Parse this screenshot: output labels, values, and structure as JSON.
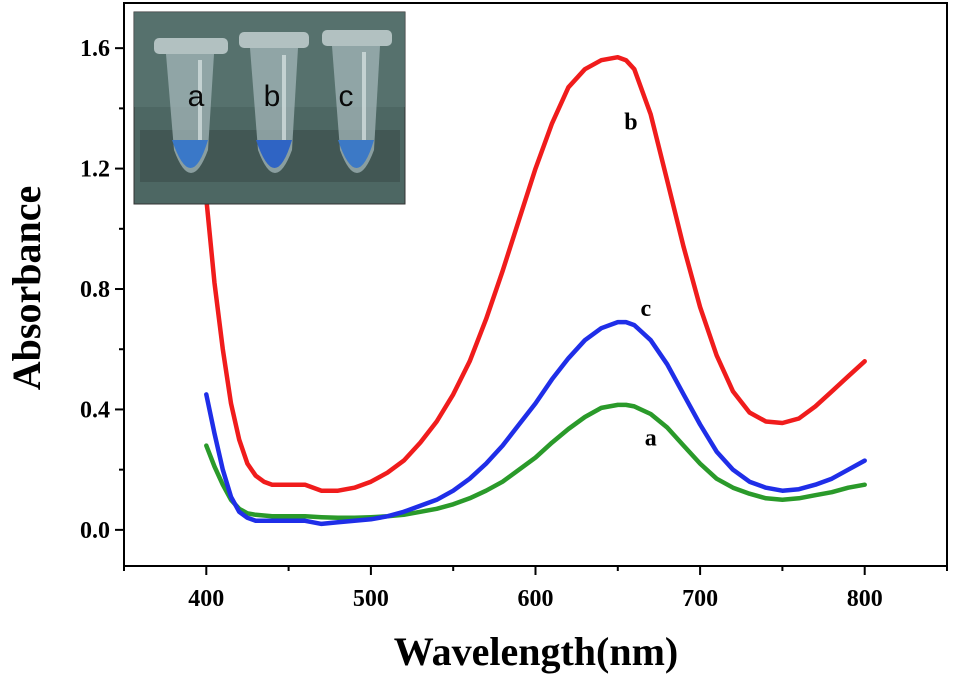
{
  "chart_data": {
    "type": "line",
    "title": "",
    "xlabel": "Wavelength(nm)",
    "ylabel": "Absorbance",
    "xlim": [
      350,
      850
    ],
    "ylim": [
      -0.12,
      1.75
    ],
    "xticks": [
      400,
      500,
      600,
      700,
      800
    ],
    "xtick_labels": [
      "400",
      "500",
      "600",
      "700",
      "800"
    ],
    "yticks": [
      0.0,
      0.4,
      0.8,
      1.2,
      1.6
    ],
    "ytick_labels": [
      "0.0",
      "0.4",
      "0.8",
      "1.2",
      "1.6"
    ],
    "grid": false,
    "series": [
      {
        "name": "a",
        "color": "#2a9a2a",
        "x": [
          400,
          405,
          410,
          415,
          420,
          425,
          430,
          440,
          450,
          460,
          470,
          480,
          490,
          500,
          510,
          520,
          530,
          540,
          550,
          560,
          570,
          580,
          590,
          600,
          610,
          620,
          630,
          640,
          650,
          655,
          660,
          670,
          680,
          690,
          700,
          710,
          720,
          730,
          740,
          750,
          760,
          770,
          780,
          790,
          800
        ],
        "y": [
          0.28,
          0.21,
          0.15,
          0.1,
          0.07,
          0.055,
          0.05,
          0.045,
          0.045,
          0.045,
          0.042,
          0.04,
          0.04,
          0.042,
          0.045,
          0.05,
          0.06,
          0.07,
          0.085,
          0.105,
          0.13,
          0.16,
          0.2,
          0.24,
          0.29,
          0.335,
          0.375,
          0.405,
          0.415,
          0.415,
          0.41,
          0.385,
          0.34,
          0.28,
          0.22,
          0.17,
          0.14,
          0.12,
          0.105,
          0.1,
          0.105,
          0.115,
          0.125,
          0.14,
          0.15
        ]
      },
      {
        "name": "b",
        "color": "#f01c1c",
        "x": [
          400,
          405,
          410,
          415,
          420,
          425,
          430,
          435,
          440,
          450,
          460,
          465,
          470,
          480,
          490,
          500,
          510,
          520,
          530,
          540,
          550,
          560,
          570,
          580,
          590,
          600,
          610,
          620,
          630,
          640,
          650,
          655,
          660,
          670,
          680,
          690,
          700,
          710,
          720,
          730,
          740,
          750,
          760,
          770,
          780,
          790,
          800
        ],
        "y": [
          1.1,
          0.82,
          0.6,
          0.42,
          0.3,
          0.22,
          0.18,
          0.16,
          0.15,
          0.15,
          0.15,
          0.14,
          0.13,
          0.13,
          0.14,
          0.16,
          0.19,
          0.23,
          0.29,
          0.36,
          0.45,
          0.56,
          0.7,
          0.86,
          1.03,
          1.2,
          1.35,
          1.47,
          1.53,
          1.56,
          1.57,
          1.56,
          1.53,
          1.38,
          1.16,
          0.94,
          0.74,
          0.58,
          0.46,
          0.39,
          0.36,
          0.355,
          0.37,
          0.41,
          0.46,
          0.51,
          0.56
        ]
      },
      {
        "name": "c",
        "color": "#1f2ee8",
        "x": [
          400,
          405,
          410,
          415,
          420,
          425,
          430,
          440,
          450,
          460,
          470,
          480,
          490,
          500,
          510,
          520,
          530,
          540,
          550,
          560,
          570,
          580,
          590,
          600,
          610,
          620,
          630,
          640,
          650,
          655,
          660,
          670,
          680,
          690,
          700,
          710,
          720,
          730,
          740,
          750,
          760,
          770,
          780,
          790,
          800
        ],
        "y": [
          0.45,
          0.32,
          0.2,
          0.11,
          0.06,
          0.04,
          0.03,
          0.03,
          0.03,
          0.03,
          0.02,
          0.025,
          0.03,
          0.035,
          0.045,
          0.06,
          0.08,
          0.1,
          0.13,
          0.17,
          0.22,
          0.28,
          0.35,
          0.42,
          0.5,
          0.57,
          0.63,
          0.67,
          0.69,
          0.69,
          0.68,
          0.63,
          0.55,
          0.45,
          0.35,
          0.26,
          0.2,
          0.16,
          0.14,
          0.13,
          0.135,
          0.15,
          0.17,
          0.2,
          0.23
        ]
      }
    ],
    "curve_labels": [
      {
        "text": "b",
        "x": 658,
        "y": 1.33
      },
      {
        "text": "c",
        "x": 667,
        "y": 0.71
      },
      {
        "text": "a",
        "x": 670,
        "y": 0.28
      }
    ],
    "inset": {
      "tube_labels": [
        "a",
        "b",
        "c"
      ]
    }
  }
}
